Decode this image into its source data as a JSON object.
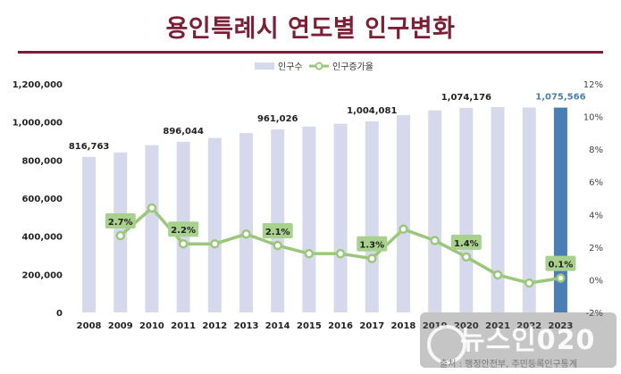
{
  "chart_data": {
    "type": "bar",
    "title": "용인특례시 연도별 인구변화",
    "categories": [
      "2008",
      "2009",
      "2010",
      "2011",
      "2012",
      "2013",
      "2014",
      "2015",
      "2016",
      "2017",
      "2018",
      "2019",
      "2020",
      "2021",
      "2022",
      "2023"
    ],
    "series": [
      {
        "name": "인구수",
        "type": "bar",
        "axis": "left",
        "values": [
          816763,
          840000,
          878000,
          896044,
          916000,
          942000,
          961026,
          976000,
          991000,
          1004081,
          1036000,
          1061000,
          1074176,
          1078000,
          1076000,
          1075566
        ]
      },
      {
        "name": "인구증가율",
        "type": "line",
        "axis": "right",
        "values": [
          null,
          2.7,
          4.4,
          2.2,
          2.2,
          2.8,
          2.1,
          1.6,
          1.6,
          1.3,
          3.1,
          2.4,
          1.4,
          0.3,
          -0.2,
          0.1
        ]
      }
    ],
    "bar_labels": [
      {
        "index": 0,
        "text": "816,763"
      },
      {
        "index": 3,
        "text": "896,044"
      },
      {
        "index": 6,
        "text": "961,026"
      },
      {
        "index": 9,
        "text": "1,004,081"
      },
      {
        "index": 12,
        "text": "1,074,176"
      },
      {
        "index": 15,
        "text": "1,075,566",
        "highlight": true
      }
    ],
    "line_labels": [
      {
        "index": 1,
        "text": "2.7%"
      },
      {
        "index": 3,
        "text": "2.2%"
      },
      {
        "index": 6,
        "text": "2.1%"
      },
      {
        "index": 9,
        "text": "1.3%"
      },
      {
        "index": 12,
        "text": "1.4%"
      },
      {
        "index": 15,
        "text": "0.1%"
      }
    ],
    "left_axis": {
      "ticks": [
        0,
        200000,
        400000,
        600000,
        800000,
        1000000,
        1200000
      ],
      "tick_labels": [
        "0",
        "200,000",
        "400,000",
        "600,000",
        "800,000",
        "1,000,000",
        "1,200,000"
      ],
      "ylim": [
        0,
        1200000
      ]
    },
    "right_axis": {
      "ticks": [
        -2,
        0,
        2,
        4,
        6,
        8,
        10,
        12
      ],
      "tick_labels": [
        "-2%",
        "0%",
        "2%",
        "4%",
        "6%",
        "8%",
        "10%",
        "12%"
      ],
      "ylim": [
        -2,
        12
      ]
    },
    "legend_position": "top-center",
    "grid": false,
    "colors": {
      "bar": "#d6d9ec",
      "bar_highlight": "#4a7fb5",
      "line": "#9bc77a",
      "label_box": "#a9d18e",
      "highlight_text": "#4a7fb5",
      "title": "#7a1f35"
    }
  },
  "watermark": {
    "logo_text": "뉴스인020",
    "source_note": "출처 : 행정안전부, 주민등록인구통계"
  }
}
